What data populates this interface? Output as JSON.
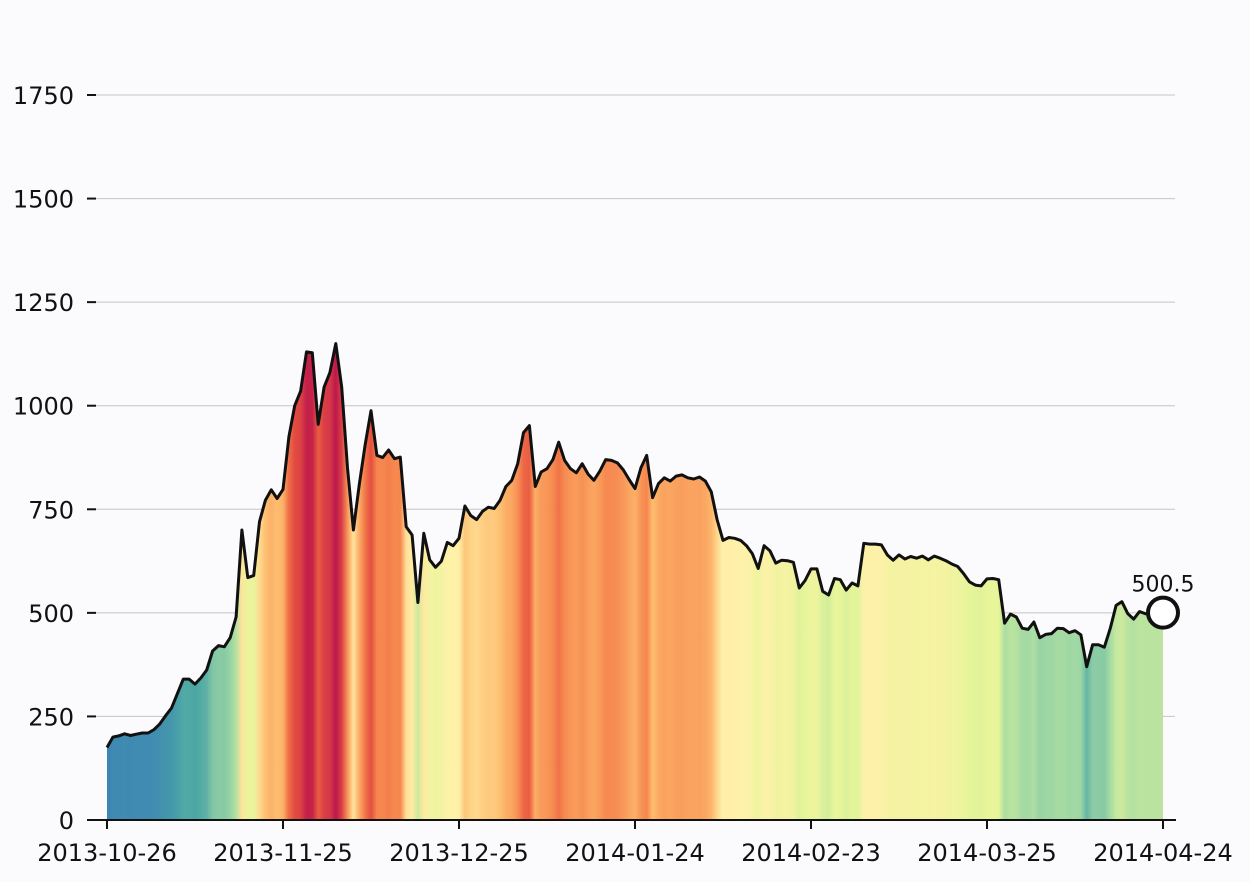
{
  "chart_data": {
    "type": "area",
    "title": "",
    "xlabel": "",
    "ylabel": "",
    "x_range": [
      "2013-10-26",
      "2014-04-24"
    ],
    "ylim": [
      0,
      1900
    ],
    "yticks": [
      0,
      250,
      500,
      750,
      1000,
      1250,
      1500,
      1750
    ],
    "xticks": [
      "2013-10-26",
      "2013-11-25",
      "2013-12-25",
      "2014-01-24",
      "2014-02-23",
      "2014-03-25",
      "2014-04-24"
    ],
    "grid": "horizontal",
    "fill": "vertical color bands mapped to value (spectral: teal low, yellow mid, red high)",
    "line_color": "#111111",
    "end_label": "500.5",
    "points": [
      [
        "2013-10-26",
        175
      ],
      [
        "2013-10-27",
        200
      ],
      [
        "2013-10-28",
        203
      ],
      [
        "2013-10-29",
        208
      ],
      [
        "2013-10-30",
        204
      ],
      [
        "2013-10-31",
        207
      ],
      [
        "2013-11-01",
        210
      ],
      [
        "2013-11-02",
        210
      ],
      [
        "2013-11-03",
        218
      ],
      [
        "2013-11-04",
        232
      ],
      [
        "2013-11-05",
        252
      ],
      [
        "2013-11-06",
        270
      ],
      [
        "2013-11-07",
        305
      ],
      [
        "2013-11-08",
        340
      ],
      [
        "2013-11-09",
        340
      ],
      [
        "2013-11-10",
        328
      ],
      [
        "2013-11-11",
        343
      ],
      [
        "2013-11-12",
        362
      ],
      [
        "2013-11-13",
        408
      ],
      [
        "2013-11-14",
        421
      ],
      [
        "2013-11-15",
        418
      ],
      [
        "2013-11-16",
        440
      ],
      [
        "2013-11-17",
        490
      ],
      [
        "2013-11-18",
        700
      ],
      [
        "2013-11-19",
        585
      ],
      [
        "2013-11-20",
        590
      ],
      [
        "2013-11-21",
        720
      ],
      [
        "2013-11-22",
        772
      ],
      [
        "2013-11-23",
        797
      ],
      [
        "2013-11-24",
        776
      ],
      [
        "2013-11-25",
        798
      ],
      [
        "2013-11-26",
        925
      ],
      [
        "2013-11-27",
        1000
      ],
      [
        "2013-11-28",
        1035
      ],
      [
        "2013-11-29",
        1130
      ],
      [
        "2013-11-30",
        1128
      ],
      [
        "2013-12-01",
        955
      ],
      [
        "2013-12-02",
        1045
      ],
      [
        "2013-12-03",
        1080
      ],
      [
        "2013-12-04",
        1150
      ],
      [
        "2013-12-05",
        1045
      ],
      [
        "2013-12-06",
        850
      ],
      [
        "2013-12-07",
        700
      ],
      [
        "2013-12-08",
        810
      ],
      [
        "2013-12-09",
        905
      ],
      [
        "2013-12-10",
        988
      ],
      [
        "2013-12-11",
        880
      ],
      [
        "2013-12-12",
        875
      ],
      [
        "2013-12-13",
        893
      ],
      [
        "2013-12-14",
        872
      ],
      [
        "2013-12-15",
        876
      ],
      [
        "2013-12-16",
        708
      ],
      [
        "2013-12-17",
        688
      ],
      [
        "2013-12-18",
        525
      ],
      [
        "2013-12-19",
        692
      ],
      [
        "2013-12-20",
        628
      ],
      [
        "2013-12-21",
        610
      ],
      [
        "2013-12-22",
        625
      ],
      [
        "2013-12-23",
        670
      ],
      [
        "2013-12-24",
        662
      ],
      [
        "2013-12-25",
        680
      ],
      [
        "2013-12-26",
        758
      ],
      [
        "2013-12-27",
        735
      ],
      [
        "2013-12-28",
        725
      ],
      [
        "2013-12-29",
        745
      ],
      [
        "2013-12-30",
        755
      ],
      [
        "2013-12-31",
        752
      ],
      [
        "2014-01-01",
        772
      ],
      [
        "2014-01-02",
        805
      ],
      [
        "2014-01-03",
        820
      ],
      [
        "2014-01-04",
        860
      ],
      [
        "2014-01-05",
        935
      ],
      [
        "2014-01-06",
        952
      ],
      [
        "2014-01-07",
        805
      ],
      [
        "2014-01-08",
        840
      ],
      [
        "2014-01-09",
        848
      ],
      [
        "2014-01-10",
        870
      ],
      [
        "2014-01-11",
        912
      ],
      [
        "2014-01-12",
        868
      ],
      [
        "2014-01-13",
        848
      ],
      [
        "2014-01-14",
        838
      ],
      [
        "2014-01-15",
        860
      ],
      [
        "2014-01-16",
        835
      ],
      [
        "2014-01-17",
        820
      ],
      [
        "2014-01-18",
        842
      ],
      [
        "2014-01-19",
        870
      ],
      [
        "2014-01-20",
        868
      ],
      [
        "2014-01-21",
        862
      ],
      [
        "2014-01-22",
        845
      ],
      [
        "2014-01-23",
        822
      ],
      [
        "2014-01-24",
        800
      ],
      [
        "2014-01-25",
        850
      ],
      [
        "2014-01-26",
        880
      ],
      [
        "2014-01-27",
        778
      ],
      [
        "2014-01-28",
        812
      ],
      [
        "2014-01-29",
        826
      ],
      [
        "2014-01-30",
        818
      ],
      [
        "2014-01-31",
        830
      ],
      [
        "2014-02-01",
        833
      ],
      [
        "2014-02-02",
        826
      ],
      [
        "2014-02-03",
        823
      ],
      [
        "2014-02-04",
        828
      ],
      [
        "2014-02-05",
        818
      ],
      [
        "2014-02-06",
        792
      ],
      [
        "2014-02-07",
        725
      ],
      [
        "2014-02-08",
        675
      ],
      [
        "2014-02-09",
        682
      ],
      [
        "2014-02-10",
        680
      ],
      [
        "2014-02-11",
        675
      ],
      [
        "2014-02-12",
        662
      ],
      [
        "2014-02-13",
        643
      ],
      [
        "2014-02-14",
        607
      ],
      [
        "2014-02-15",
        662
      ],
      [
        "2014-02-16",
        650
      ],
      [
        "2014-02-17",
        620
      ],
      [
        "2014-02-18",
        627
      ],
      [
        "2014-02-19",
        626
      ],
      [
        "2014-02-20",
        622
      ],
      [
        "2014-02-21",
        560
      ],
      [
        "2014-02-22",
        578
      ],
      [
        "2014-02-23",
        606
      ],
      [
        "2014-02-24",
        606
      ],
      [
        "2014-02-25",
        552
      ],
      [
        "2014-02-26",
        543
      ],
      [
        "2014-02-27",
        583
      ],
      [
        "2014-02-28",
        580
      ],
      [
        "2014-03-01",
        555
      ],
      [
        "2014-03-02",
        572
      ],
      [
        "2014-03-03",
        565
      ],
      [
        "2014-03-04",
        668
      ],
      [
        "2014-03-05",
        666
      ],
      [
        "2014-03-06",
        666
      ],
      [
        "2014-03-07",
        664
      ],
      [
        "2014-03-08",
        640
      ],
      [
        "2014-03-09",
        627
      ],
      [
        "2014-03-10",
        640
      ],
      [
        "2014-03-11",
        630
      ],
      [
        "2014-03-12",
        636
      ],
      [
        "2014-03-13",
        632
      ],
      [
        "2014-03-14",
        637
      ],
      [
        "2014-03-15",
        628
      ],
      [
        "2014-03-16",
        637
      ],
      [
        "2014-03-17",
        632
      ],
      [
        "2014-03-18",
        626
      ],
      [
        "2014-03-19",
        618
      ],
      [
        "2014-03-20",
        612
      ],
      [
        "2014-03-21",
        595
      ],
      [
        "2014-03-22",
        575
      ],
      [
        "2014-03-23",
        567
      ],
      [
        "2014-03-24",
        565
      ],
      [
        "2014-03-25",
        582
      ],
      [
        "2014-03-26",
        583
      ],
      [
        "2014-03-27",
        580
      ],
      [
        "2014-03-28",
        475
      ],
      [
        "2014-03-29",
        497
      ],
      [
        "2014-03-30",
        490
      ],
      [
        "2014-03-31",
        463
      ],
      [
        "2014-04-01",
        460
      ],
      [
        "2014-04-02",
        478
      ],
      [
        "2014-04-03",
        440
      ],
      [
        "2014-04-04",
        448
      ],
      [
        "2014-04-05",
        450
      ],
      [
        "2014-04-06",
        463
      ],
      [
        "2014-04-07",
        462
      ],
      [
        "2014-04-08",
        452
      ],
      [
        "2014-04-09",
        457
      ],
      [
        "2014-04-10",
        447
      ],
      [
        "2014-04-11",
        370
      ],
      [
        "2014-04-12",
        423
      ],
      [
        "2014-04-13",
        423
      ],
      [
        "2014-04-14",
        417
      ],
      [
        "2014-04-15",
        462
      ],
      [
        "2014-04-16",
        518
      ],
      [
        "2014-04-17",
        527
      ],
      [
        "2014-04-18",
        498
      ],
      [
        "2014-04-19",
        485
      ],
      [
        "2014-04-20",
        503
      ],
      [
        "2014-04-21",
        498
      ],
      [
        "2014-04-22",
        497
      ],
      [
        "2014-04-23",
        500
      ],
      [
        "2014-04-24",
        500.5
      ]
    ]
  }
}
